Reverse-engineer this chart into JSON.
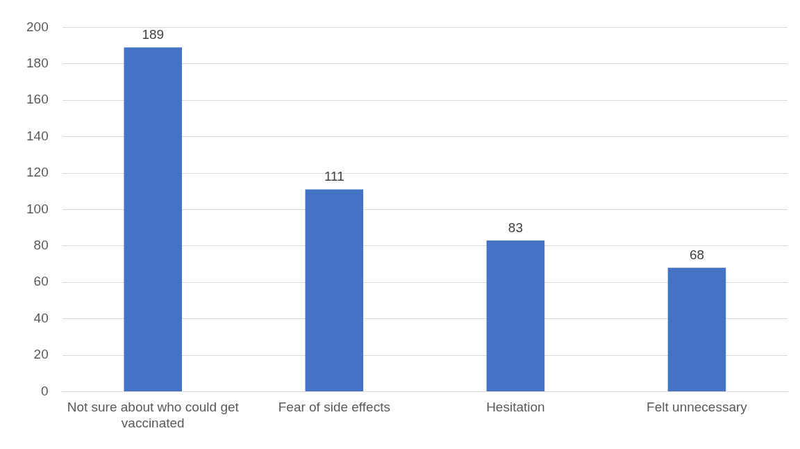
{
  "chart_data": {
    "type": "bar",
    "categories": [
      "Not sure about who could get vaccinated",
      "Fear of side effects",
      "Hesitation",
      "Felt unnecessary"
    ],
    "values": [
      189,
      111,
      83,
      68
    ],
    "color": "#4472c4",
    "ylim": [
      0,
      200
    ],
    "yticks": [
      0,
      20,
      40,
      60,
      80,
      100,
      120,
      140,
      160,
      180,
      200
    ],
    "grid": "y",
    "data_labels": true
  }
}
